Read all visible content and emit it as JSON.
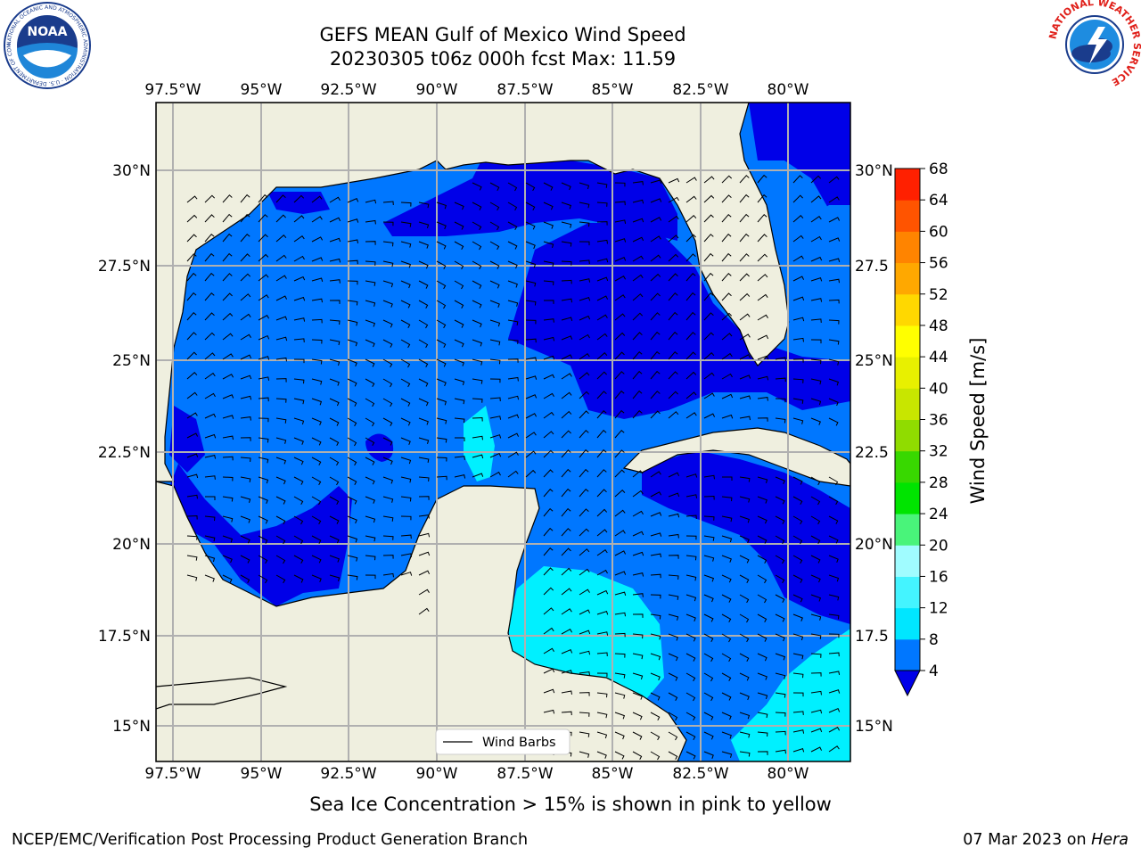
{
  "title": {
    "line1": "GEFS MEAN Gulf of Mexico Wind Speed",
    "line2": "20230305 t06z 000h fcst   Max: 11.59"
  },
  "map": {
    "lon_ticks": [
      "97.5°W",
      "95°W",
      "92.5°W",
      "90°W",
      "87.5°W",
      "85°W",
      "82.5°W",
      "80°W"
    ],
    "lat_ticks_left": [
      "30°N",
      "27.5°N",
      "25°N",
      "22.5°N",
      "20°N",
      "17.5°N",
      "15°N"
    ],
    "lat_ticks_right": [
      "30°N",
      "27.5",
      "25°N",
      "22.5",
      "20°N",
      "17.5",
      "15°N"
    ],
    "legend_label": "Wind Barbs",
    "colors": {
      "land": "#efefdf",
      "grid": "#b0b0b0"
    }
  },
  "colorbar": {
    "label": "Wind Speed [m/s]",
    "ticks": [
      "68",
      "64",
      "60",
      "56",
      "52",
      "48",
      "44",
      "40",
      "36",
      "32",
      "28",
      "24",
      "20",
      "16",
      "12",
      "8",
      "4"
    ],
    "colors": [
      "#0000e8",
      "#0077ff",
      "#00e6ff",
      "#44f4ff",
      "#a0fcff",
      "#49f47a",
      "#00e400",
      "#38d800",
      "#90dc00",
      "#c8e600",
      "#e8f000",
      "#ffff00",
      "#ffd800",
      "#ffa800",
      "#ff8400",
      "#ff5400",
      "#ff2000",
      "#ff0000"
    ]
  },
  "footer": {
    "note": "Sea Ice Concentration > 15% is shown in pink to yellow",
    "credit": "NCEP/EMC/Verification Post Processing Product Generation Branch",
    "date_prefix": "07 Mar 2023 on ",
    "host": "Hera"
  },
  "logos": {
    "noaa_text": "NOAA",
    "noaa_ring": "NATIONAL OCEANIC AND ATMOSPHERIC ADMINISTRATION · U.S. DEPARTMENT OF COMMERCE",
    "nws_ring": "NATIONAL WEATHER SERVICE"
  }
}
